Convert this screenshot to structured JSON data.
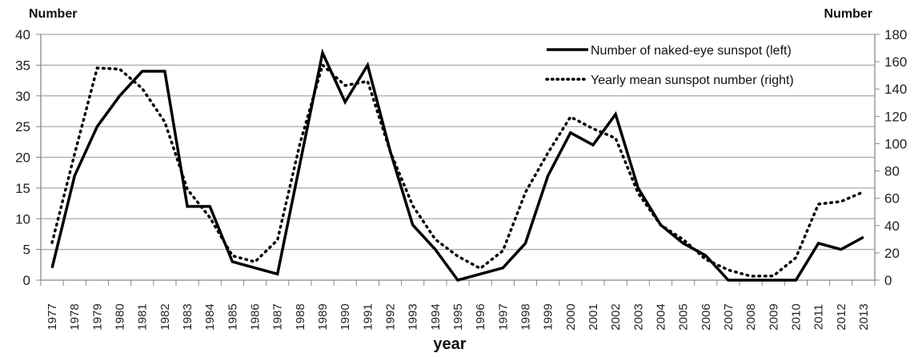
{
  "chart_data": {
    "type": "line",
    "title": "",
    "xlabel": "year",
    "ylabel_left": "Number",
    "ylabel_right": "Number",
    "ylim_left": [
      0,
      40
    ],
    "ylim_right": [
      0,
      180
    ],
    "yticks_left": [
      0,
      5,
      10,
      15,
      20,
      25,
      30,
      35,
      40
    ],
    "yticks_right": [
      0,
      20,
      40,
      60,
      80,
      100,
      120,
      140,
      160,
      180
    ],
    "grid": true,
    "legend_position": "top-right",
    "categories": [
      "1977",
      "1978",
      "1979",
      "1980",
      "1981",
      "1982",
      "1983",
      "1984",
      "1985",
      "1986",
      "1987",
      "1988",
      "1989",
      "1990",
      "1991",
      "1992",
      "1993",
      "1994",
      "1995",
      "1996",
      "1997",
      "1998",
      "1999",
      "2000",
      "2001",
      "2002",
      "2003",
      "2004",
      "2005",
      "2006",
      "2007",
      "2008",
      "2009",
      "2010",
      "2011",
      "2012",
      "2013"
    ],
    "series": [
      {
        "name": "Number of naked-eye sunspot (left)",
        "axis": "left",
        "style": "solid",
        "values": [
          2,
          17,
          25,
          30,
          34,
          34,
          12,
          12,
          3,
          2,
          1,
          19,
          37,
          29,
          35,
          21,
          9,
          5,
          0,
          1,
          2,
          6,
          17,
          24,
          22,
          27,
          15,
          9,
          6,
          4,
          0,
          0,
          0,
          0,
          6,
          5,
          7
        ]
      },
      {
        "name": "Yearly mean sunspot number (right)",
        "axis": "right",
        "style": "dotted",
        "values": [
          27.5,
          92.5,
          155.4,
          154.6,
          140.4,
          115.9,
          66.6,
          45.9,
          17.9,
          13.4,
          29.4,
          100.2,
          157.6,
          142.6,
          145.7,
          94.3,
          54.6,
          29.9,
          17.5,
          8.6,
          21.5,
          64.3,
          93.3,
          119.6,
          111.0,
          104.0,
          63.7,
          40.4,
          29.8,
          15.2,
          7.5,
          2.9,
          3.1,
          16.5,
          55.7,
          57.6,
          64.7
        ]
      }
    ]
  }
}
